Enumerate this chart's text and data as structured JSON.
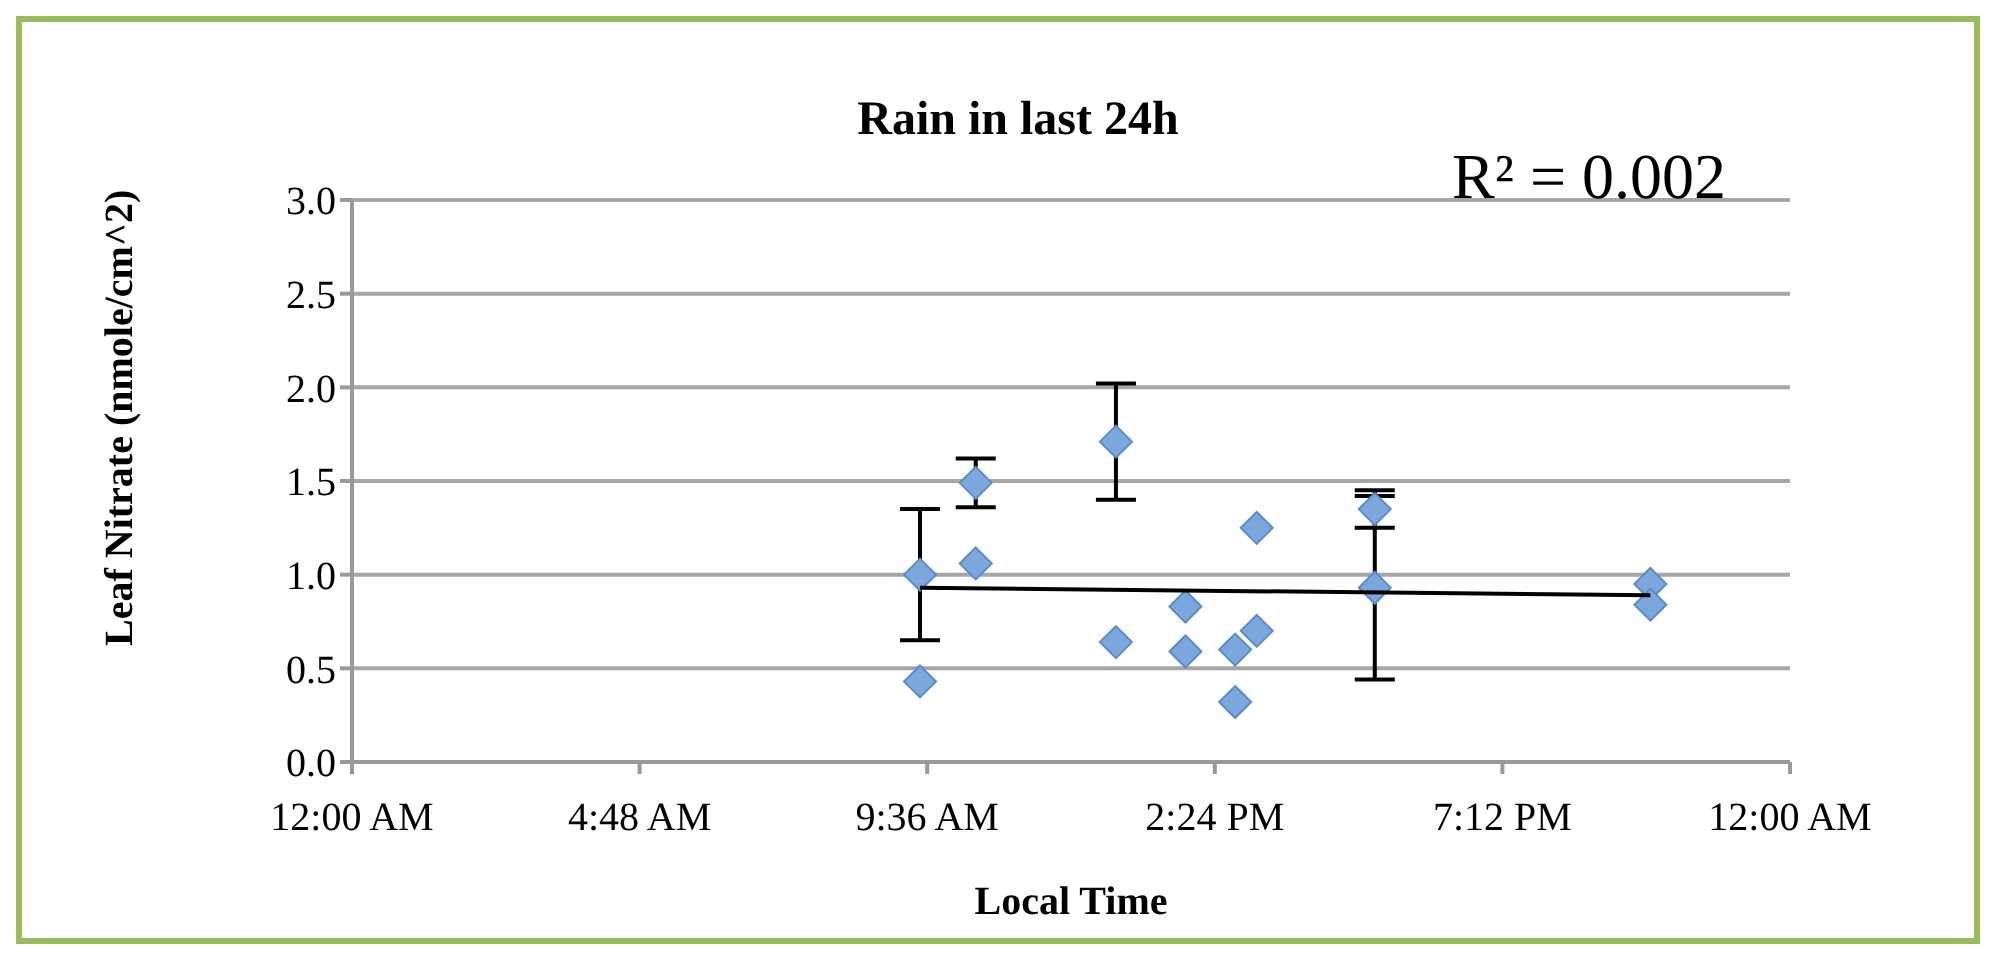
{
  "chart_data": {
    "type": "scatter",
    "title": "Rain in last 24h",
    "xlabel": "Local Time",
    "ylabel": "Leaf Nitrate (nmole/cm^2)",
    "annotations": [
      "R² = 0.002"
    ],
    "xlim": [
      0,
      24
    ],
    "xticks": [
      {
        "value": 0,
        "label": "12:00 AM"
      },
      {
        "value": 4.8,
        "label": "4:48 AM"
      },
      {
        "value": 9.6,
        "label": "9:36 AM"
      },
      {
        "value": 14.4,
        "label": "2:24 PM"
      },
      {
        "value": 19.2,
        "label": "7:12 PM"
      },
      {
        "value": 24,
        "label": "12:00 AM"
      }
    ],
    "ylim": [
      0,
      3
    ],
    "yticks": [
      {
        "value": 0,
        "label": "0.0"
      },
      {
        "value": 0.5,
        "label": "0.5"
      },
      {
        "value": 1,
        "label": "1.0"
      },
      {
        "value": 1.5,
        "label": "1.5"
      },
      {
        "value": 2,
        "label": "2.0"
      },
      {
        "value": 2.5,
        "label": "2.5"
      },
      {
        "value": 3,
        "label": "3.0"
      }
    ],
    "grid": "y",
    "legend": false,
    "marker": "diamond",
    "series": [
      {
        "color": "#7ba7dc",
        "x": [
          9.48,
          9.48,
          10.41,
          10.41,
          12.75,
          12.75,
          13.91,
          13.91,
          14.74,
          14.74,
          15.1,
          15.1,
          17.07,
          17.07,
          21.67,
          21.67
        ],
        "values": [
          1.0,
          0.43,
          1.49,
          1.06,
          1.71,
          0.64,
          0.83,
          0.59,
          0.6,
          0.32,
          1.25,
          0.7,
          1.35,
          0.93,
          0.95,
          0.84
        ],
        "errors": [
          0.35,
          null,
          0.13,
          null,
          0.31,
          null,
          null,
          null,
          null,
          null,
          null,
          null,
          0.1,
          0.49,
          null,
          null
        ]
      },
      {
        "type": "line",
        "marker": "none",
        "color": "#000000",
        "x": [
          9.48,
          21.67
        ],
        "values": [
          0.93,
          0.89
        ]
      }
    ]
  }
}
